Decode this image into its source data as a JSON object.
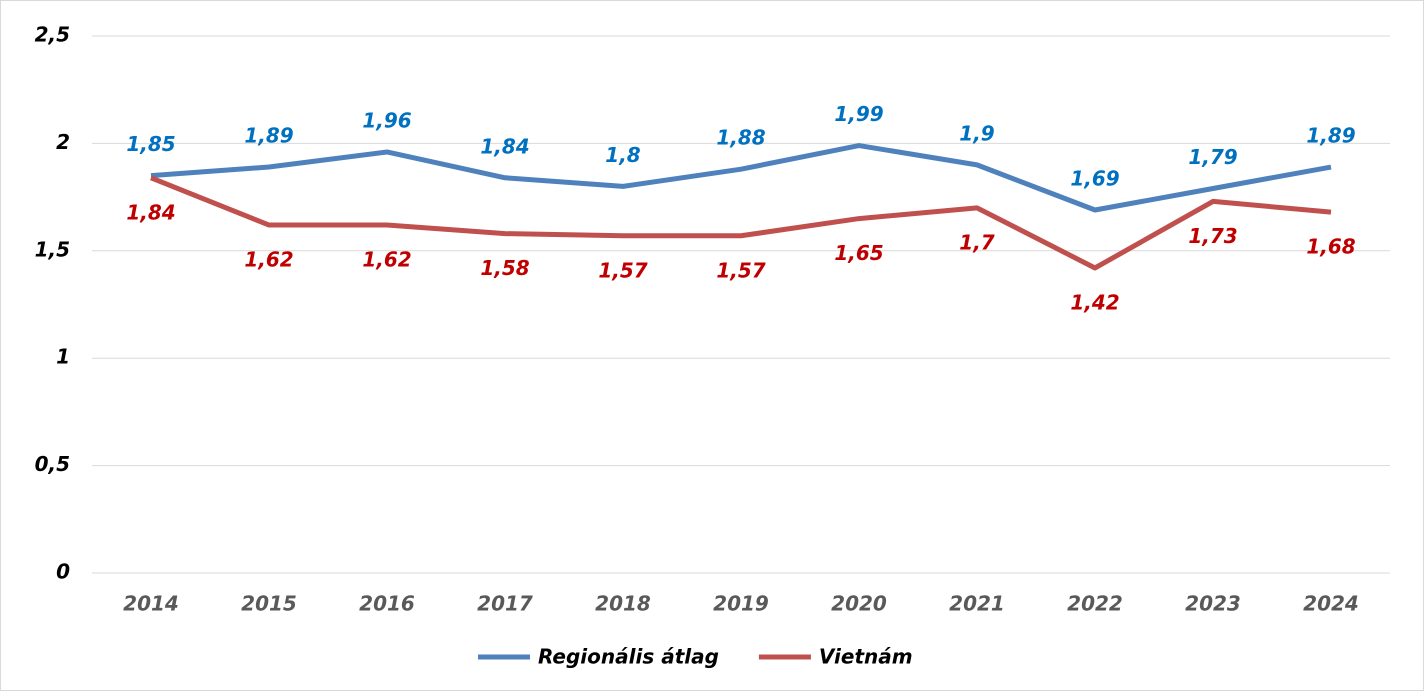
{
  "chart_data": {
    "type": "line",
    "categories": [
      "2014",
      "2015",
      "2016",
      "2017",
      "2018",
      "2019",
      "2020",
      "2021",
      "2022",
      "2023",
      "2024"
    ],
    "series": [
      {
        "name": "Regionális átlag",
        "color": "#4f81bd",
        "label_color": "#0070c0",
        "values": [
          1.85,
          1.89,
          1.96,
          1.84,
          1.8,
          1.88,
          1.99,
          1.9,
          1.69,
          1.79,
          1.89
        ],
        "value_labels": [
          "1,85",
          "1,89",
          "1,96",
          "1,84",
          "1,8",
          "1,88",
          "1,99",
          "1,9",
          "1,69",
          "1,79",
          "1,89"
        ]
      },
      {
        "name": "Vietnám",
        "color": "#c0504d",
        "label_color": "#c00000",
        "values": [
          1.84,
          1.62,
          1.62,
          1.58,
          1.57,
          1.57,
          1.65,
          1.7,
          1.42,
          1.73,
          1.68
        ],
        "value_labels": [
          "1,84",
          "1,62",
          "1,62",
          "1,58",
          "1,57",
          "1,57",
          "1,65",
          "1,7",
          "1,42",
          "1,73",
          "1,68"
        ]
      }
    ],
    "ylim": [
      0,
      2.5
    ],
    "yticks": [
      0,
      {
        "value": 0.5,
        "label": "0,5"
      },
      1,
      {
        "value": 1.5,
        "label": "1,5"
      },
      2,
      {
        "value": 2.5,
        "label": "2,5"
      }
    ],
    "grid": true,
    "legend": "bottom"
  }
}
